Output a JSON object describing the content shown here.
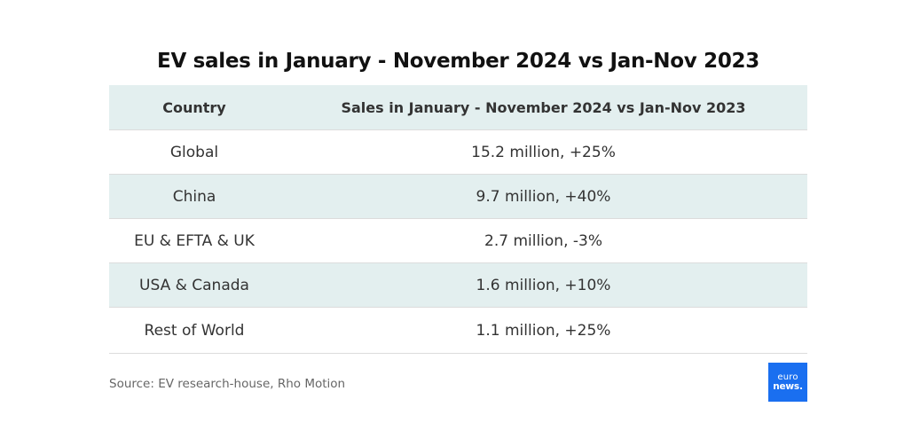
{
  "title": "EV sales in January - November 2024 vs Jan-Nov 2023",
  "table": {
    "headers": {
      "country": "Country",
      "sales": "Sales in January - November 2024 vs Jan-Nov 2023"
    },
    "rows": [
      {
        "country": "Global",
        "sales": "15.2 million, +25%"
      },
      {
        "country": "China",
        "sales": "9.7 million, +40%"
      },
      {
        "country": "EU & EFTA & UK",
        "sales": "2.7 million, -3%"
      },
      {
        "country": "USA & Canada",
        "sales": "1.6 million, +10%"
      },
      {
        "country": "Rest of World",
        "sales": "1.1 million, +25%"
      }
    ]
  },
  "source": "Source: EV research-house, Rho Motion",
  "logo": {
    "line1": "euro",
    "line2": "news."
  },
  "colors": {
    "header_bg": "#e3efef",
    "logo_bg": "#1a6ff0"
  },
  "chart_data": {
    "type": "table",
    "title": "EV sales in January - November 2024 vs Jan-Nov 2023",
    "columns": [
      "Country",
      "Sales in January - November 2024 vs Jan-Nov 2023"
    ],
    "rows": [
      [
        "Global",
        "15.2 million, +25%"
      ],
      [
        "China",
        "9.7 million, +40%"
      ],
      [
        "EU & EFTA & UK",
        "2.7 million, -3%"
      ],
      [
        "USA & Canada",
        "1.6 million, +10%"
      ],
      [
        "Rest of World",
        "1.1 million, +25%"
      ]
    ]
  }
}
